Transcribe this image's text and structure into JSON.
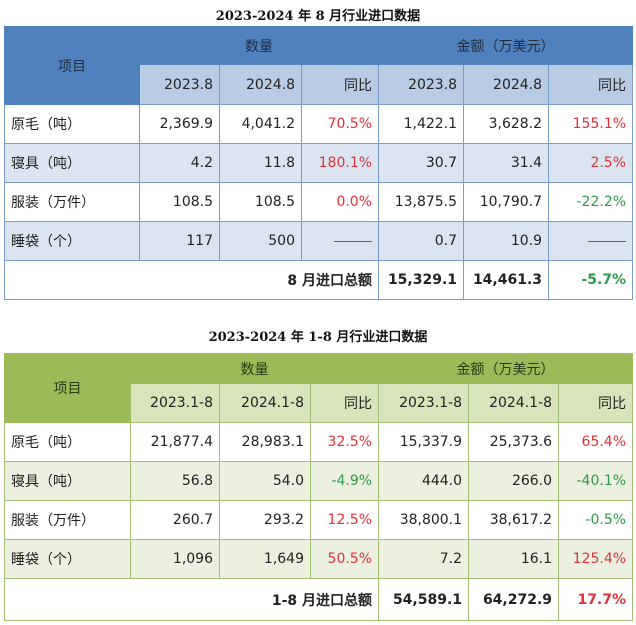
{
  "table1": {
    "title": "2023-2024 年 8 月行业进口数据",
    "item_header": "项目",
    "qty_header": "数量",
    "amt_header": "金额（万美元）",
    "sub_headers": [
      "2023.8",
      "2024.8",
      "同比",
      "2023.8",
      "2024.8",
      "同比"
    ],
    "rows": [
      {
        "name": "原毛（吨）",
        "q1": "2,369.9",
        "q2": "4,041.2",
        "qy": "70.5%",
        "qy_color": "red",
        "a1": "1,422.1",
        "a2": "3,628.2",
        "ay": "155.1%",
        "ay_color": "red"
      },
      {
        "name": "寝具（吨）",
        "q1": "4.2",
        "q2": "11.8",
        "qy": "180.1%",
        "qy_color": "red",
        "a1": "30.7",
        "a2": "31.4",
        "ay": "2.5%",
        "ay_color": "red"
      },
      {
        "name": "服装（万件）",
        "q1": "108.5",
        "q2": "108.5",
        "qy": "0.0%",
        "qy_color": "red",
        "a1": "13,875.5",
        "a2": "10,790.7",
        "ay": "-22.2%",
        "ay_color": "green"
      },
      {
        "name": "睡袋（个）",
        "q1": "117",
        "q2": "500",
        "qy": "——",
        "qy_color": "dash",
        "a1": "0.7",
        "a2": "10.9",
        "ay": "——",
        "ay_color": "dash"
      }
    ],
    "total": {
      "label": "8 月进口总额",
      "a1": "15,329.1",
      "a2": "14,461.3",
      "ay": "-5.7%",
      "ay_color": "green"
    }
  },
  "table2": {
    "title": "2023-2024 年 1-8 月行业进口数据",
    "item_header": "项目",
    "qty_header": "数量",
    "amt_header": "金额（万美元）",
    "sub_headers": [
      "2023.1-8",
      "2024.1-8",
      "同比",
      "2023.1-8",
      "2024.1-8",
      "同比"
    ],
    "rows": [
      {
        "name": "原毛（吨）",
        "q1": "21,877.4",
        "q2": "28,983.1",
        "qy": "32.5%",
        "qy_color": "red",
        "a1": "15,337.9",
        "a2": "25,373.6",
        "ay": "65.4%",
        "ay_color": "red"
      },
      {
        "name": "寝具（吨）",
        "q1": "56.8",
        "q2": "54.0",
        "qy": "-4.9%",
        "qy_color": "green",
        "a1": "444.0",
        "a2": "266.0",
        "ay": "-40.1%",
        "ay_color": "green"
      },
      {
        "name": "服装（万件）",
        "q1": "260.7",
        "q2": "293.2",
        "qy": "12.5%",
        "qy_color": "red",
        "a1": "38,800.1",
        "a2": "38,617.2",
        "ay": "-0.5%",
        "ay_color": "green"
      },
      {
        "name": "睡袋（个）",
        "q1": "1,096",
        "q2": "1,649",
        "qy": "50.5%",
        "qy_color": "red",
        "a1": "7.2",
        "a2": "16.1",
        "ay": "125.4%",
        "ay_color": "red"
      }
    ],
    "total": {
      "label": "1-8 月进口总额",
      "a1": "54,589.1",
      "a2": "64,272.9",
      "ay": "17.7%",
      "ay_color": "red"
    }
  }
}
